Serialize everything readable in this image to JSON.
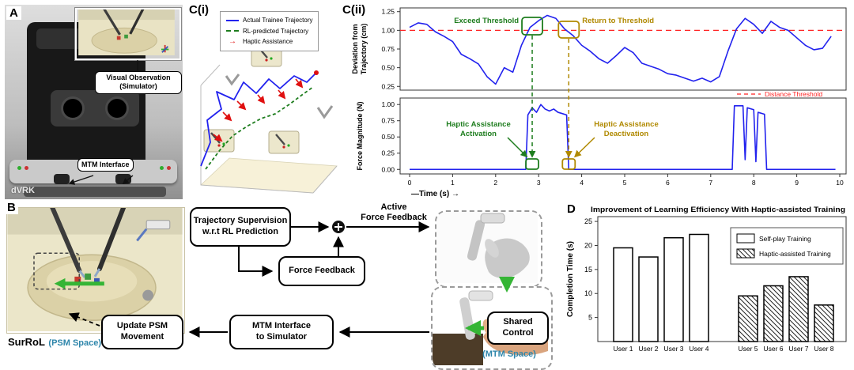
{
  "colors": {
    "trainee_blue": "#2222ee",
    "rl_green": "#1e7d1e",
    "haptic_red": "#e01010",
    "threshold_red": "#ff2222",
    "gold": "#b08900",
    "space_teal": "#2e86ab",
    "arrow_green": "#35b535"
  },
  "panel_a": {
    "label": "A",
    "inset_caption_line1": "Visual Observation",
    "inset_caption_line2": "(Simulator)",
    "mtm_label": "MTM Interface",
    "watermark": "dVRK"
  },
  "panel_b": {
    "label": "B",
    "trajectory_supervision_line1": "Trajectory Supervision",
    "trajectory_supervision_line2": "w.r.t RL Prediction",
    "force_feedback": "Force Feedback",
    "active_line1": "Active",
    "active_line2": "Force Feedback",
    "update_psm_line1": "Update PSM",
    "update_psm_line2": "Movement",
    "mtm_interface_line1": "MTM Interface",
    "mtm_interface_line2": "to Simulator",
    "shared_control_line1": "Shared",
    "shared_control_line2": "Control",
    "surrol": "SurRoL",
    "psm_space": "(PSM Space)",
    "mtm_space": "(MTM Space)",
    "arrow_glyph": "→"
  },
  "panel_ci": {
    "label": "C(i)",
    "legend": [
      "Actual Trainee Trajectory",
      "RL-predicted Trajectory",
      "Haptic Assistance"
    ],
    "arrow_glyph": "→"
  },
  "panel_cii": {
    "label": "C(ii)"
  },
  "panel_d": {
    "label": "D"
  },
  "chart_data": [
    {
      "panel": "C(i)",
      "type": "line",
      "projection": "3d",
      "series": [
        {
          "name": "Actual Trainee Trajectory",
          "color": "#2222ee",
          "style": "solid"
        },
        {
          "name": "RL-predicted Trajectory",
          "color": "#1e7d1e",
          "style": "dashed"
        },
        {
          "name": "Haptic Assistance",
          "color": "#e01010",
          "style": "arrows"
        }
      ],
      "sketch_paths": {
        "blue": [
          [
            20,
            160
          ],
          [
            32,
            130
          ],
          [
            28,
            102
          ],
          [
            46,
            88
          ],
          [
            40,
            66
          ],
          [
            62,
            76
          ],
          [
            74,
            54
          ],
          [
            90,
            68
          ],
          [
            106,
            50
          ],
          [
            120,
            62
          ],
          [
            138,
            46
          ],
          [
            154,
            54
          ],
          [
            166,
            42
          ]
        ],
        "green": [
          [
            26,
            164
          ],
          [
            44,
            140
          ],
          [
            60,
            122
          ],
          [
            78,
            110
          ],
          [
            96,
            100
          ],
          [
            114,
            94
          ],
          [
            132,
            82
          ],
          [
            148,
            70
          ],
          [
            162,
            60
          ]
        ]
      },
      "red_arrows": [
        [
          [
            48,
            92
          ],
          [
            58,
            102
          ]
        ],
        [
          [
            66,
            78
          ],
          [
            76,
            88
          ]
        ],
        [
          [
            92,
            70
          ],
          [
            100,
            80
          ]
        ],
        [
          [
            118,
            64
          ],
          [
            126,
            74
          ]
        ],
        [
          [
            36,
            120
          ],
          [
            46,
            128
          ]
        ],
        [
          [
            140,
            50
          ],
          [
            148,
            60
          ]
        ]
      ]
    },
    {
      "panel": "C(ii)-top",
      "type": "line",
      "ylabel": "Deviation from Trajectory (cm)",
      "ylabel_lines": [
        "Deviation from",
        "Trajectory (cm)"
      ],
      "ylim": [
        0.2,
        1.3
      ],
      "yticks": [
        0.25,
        0.5,
        0.75,
        1.0,
        1.25
      ],
      "threshold": {
        "value": 1.0,
        "label": "Distance Threshold",
        "color": "#ff2222",
        "style": "dashed"
      },
      "line_color": "#2222ee",
      "x": [
        0,
        0.2,
        0.4,
        0.6,
        0.8,
        1,
        1.2,
        1.4,
        1.6,
        1.8,
        2,
        2.2,
        2.4,
        2.6,
        2.8,
        3,
        3.2,
        3.4,
        3.6,
        3.8,
        4,
        4.2,
        4.4,
        4.6,
        4.8,
        5,
        5.2,
        5.4,
        5.6,
        5.8,
        6,
        6.2,
        6.4,
        6.6,
        6.8,
        7,
        7.2,
        7.4,
        7.6,
        7.8,
        8,
        8.2,
        8.4,
        8.6,
        8.8,
        9,
        9.2,
        9.4,
        9.6,
        9.8
      ],
      "y": [
        1.04,
        1.1,
        1.08,
        0.98,
        0.92,
        0.85,
        0.68,
        0.62,
        0.55,
        0.38,
        0.28,
        0.5,
        0.44,
        0.8,
        1.04,
        1.13,
        1.2,
        1.16,
        1.02,
        0.93,
        0.8,
        0.72,
        0.62,
        0.56,
        0.66,
        0.77,
        0.7,
        0.56,
        0.52,
        0.48,
        0.42,
        0.4,
        0.36,
        0.32,
        0.36,
        0.31,
        0.38,
        0.72,
        1.02,
        1.16,
        1.08,
        0.96,
        1.12,
        1.04,
        1.0,
        0.9,
        0.8,
        0.74,
        0.76,
        0.92
      ],
      "annotations": [
        {
          "text": "Exceed Threshold",
          "color": "#1e7d1e"
        },
        {
          "text": "Return to Threshold",
          "color": "#b08900"
        }
      ]
    },
    {
      "panel": "C(ii)-bottom",
      "type": "line",
      "ylabel": "Force Magnitude (N)",
      "xlabel": "Time (s)",
      "ylim": [
        -0.07,
        1.1
      ],
      "yticks": [
        0.0,
        0.25,
        0.5,
        0.75,
        1.0
      ],
      "xticks": [
        0,
        1,
        2,
        3,
        4,
        5,
        6,
        7,
        8,
        9,
        10
      ],
      "line_color": "#2222ee",
      "x": [
        0,
        2.7,
        2.75,
        2.85,
        2.95,
        3.05,
        3.15,
        3.25,
        3.35,
        3.45,
        3.55,
        3.65,
        3.7,
        7.5,
        7.55,
        7.75,
        7.8,
        7.85,
        8.0,
        8.05,
        8.1,
        8.25,
        8.3,
        9.9
      ],
      "y": [
        0,
        0,
        0.84,
        0.95,
        0.88,
        1.0,
        0.93,
        0.9,
        0.93,
        0.88,
        0.86,
        0.84,
        0,
        0,
        0.98,
        0.98,
        0.15,
        0.95,
        0.92,
        0.12,
        0.88,
        0.85,
        0,
        0
      ],
      "event_times": {
        "activation": 2.85,
        "deactivation": 3.7
      },
      "annotations": [
        {
          "lines": [
            "Haptic Assistance",
            "Activation"
          ],
          "color": "#1e7d1e"
        },
        {
          "lines": [
            "Haptic Assistance",
            "Deactivation"
          ],
          "color": "#b08900"
        }
      ]
    },
    {
      "panel": "D",
      "type": "bar",
      "title": "Improvement of Learning Efficiency With Haptic-assisted Training",
      "ylabel": "Completion Time (s)",
      "ylim": [
        0,
        26
      ],
      "yticks": [
        5,
        10,
        15,
        20,
        25
      ],
      "categories": [
        "User 1",
        "User 2",
        "User 3",
        "User 4",
        "User 5",
        "User 6",
        "User 7",
        "User 8"
      ],
      "values": [
        19.5,
        17.6,
        21.6,
        22.3,
        9.5,
        11.6,
        13.5,
        7.6
      ],
      "series_split": 4,
      "legend": [
        {
          "label": "Self-play Training",
          "fill": "white"
        },
        {
          "label": "Haptic-assisted Training",
          "fill": "hatched"
        }
      ]
    }
  ]
}
